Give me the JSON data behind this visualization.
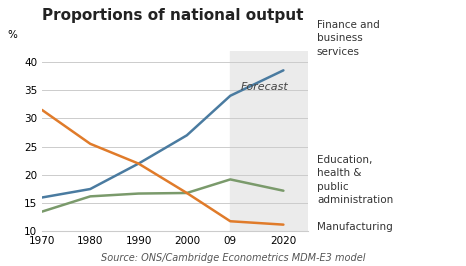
{
  "title": "Proportions of national output",
  "ylabel": "%",
  "source": "Source: ONS/Cambridge Econometrics MDM-E3 model",
  "forecast_start": 2009,
  "forecast_label": "Forecast",
  "xlim": [
    1970,
    2025
  ],
  "ylim": [
    10,
    42
  ],
  "yticks": [
    10,
    15,
    20,
    25,
    30,
    35,
    40
  ],
  "xticks": [
    1970,
    1980,
    1990,
    2000,
    2009,
    2020
  ],
  "xticklabels": [
    "1970",
    "1980",
    "1990",
    "2000",
    "09",
    "2020"
  ],
  "finance": {
    "x": [
      1970,
      1980,
      1990,
      2000,
      2009,
      2020
    ],
    "y": [
      16.0,
      17.5,
      22.0,
      27.0,
      34.0,
      38.5
    ],
    "color": "#4a7ba0",
    "label": "Finance and\nbusiness\nservices"
  },
  "education": {
    "x": [
      1970,
      1980,
      1990,
      2000,
      2009,
      2020
    ],
    "y": [
      13.5,
      16.2,
      16.7,
      16.8,
      19.2,
      17.2
    ],
    "color": "#7a9a6b",
    "label": "Education,\nhealth &\npublic\nadministration"
  },
  "manufacturing": {
    "x": [
      1970,
      1980,
      1990,
      2000,
      2009,
      2020
    ],
    "y": [
      31.5,
      25.5,
      22.0,
      16.8,
      11.8,
      11.2
    ],
    "color": "#e07b2a",
    "label": "Manufacturing"
  },
  "background_color": "#ffffff",
  "forecast_bg": "#ebebeb",
  "grid_color": "#cccccc",
  "title_fontsize": 11,
  "tick_fontsize": 7.5,
  "label_fontsize": 7.5,
  "source_fontsize": 7,
  "forecast_fontsize": 8
}
